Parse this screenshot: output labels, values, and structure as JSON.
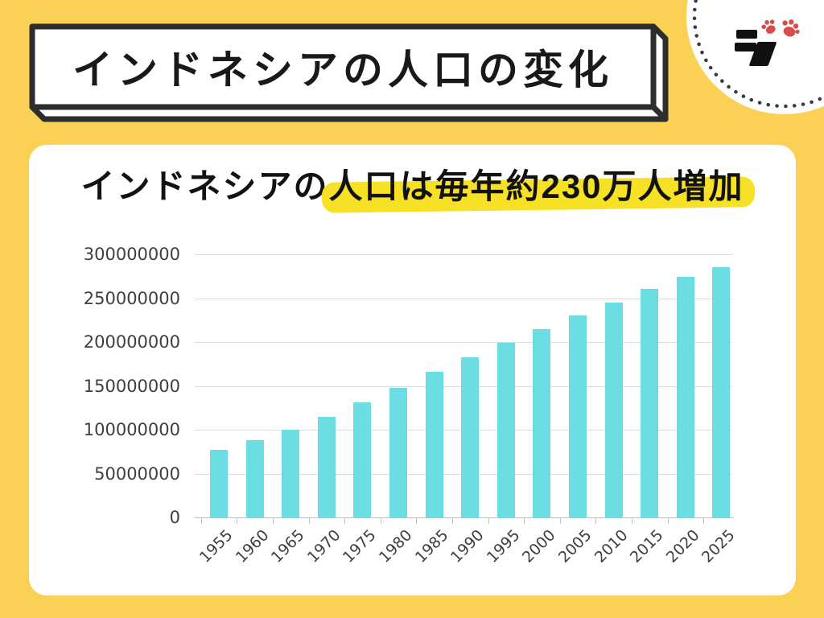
{
  "page": {
    "background_color": "#fbd155"
  },
  "header": {
    "title": "インドネシアの人口の変化",
    "box_border_color": "#2d2d2d"
  },
  "logo": {
    "name": "paw-slash-brand-mark",
    "paw_color": "#d94c4c",
    "glyph_color": "#111111",
    "dot_ring_color": "#323a4e"
  },
  "card": {
    "heading_prefix": "インドネシアの",
    "heading_highlight": "人口は毎年約230万人増加",
    "highlight_color": "#f6e126"
  },
  "chart_data": {
    "type": "bar",
    "title": "インドネシアの人口は毎年約230万人増加",
    "xlabel": "",
    "ylabel": "",
    "categories": [
      "1955",
      "1960",
      "1965",
      "1970",
      "1975",
      "1980",
      "1985",
      "1990",
      "1995",
      "2000",
      "2005",
      "2010",
      "2015",
      "2020",
      "2025"
    ],
    "values": [
      77000000,
      88000000,
      100000000,
      115000000,
      131000000,
      148000000,
      166000000,
      183000000,
      199000000,
      215000000,
      230000000,
      245000000,
      261000000,
      274000000,
      285000000
    ],
    "bar_color": "#6adee2",
    "ylim": [
      0,
      300000000
    ],
    "y_ticks": [
      0,
      50000000,
      100000000,
      150000000,
      200000000,
      250000000,
      300000000
    ],
    "grid": true,
    "legend": "none",
    "x_label_rotation": -45
  }
}
